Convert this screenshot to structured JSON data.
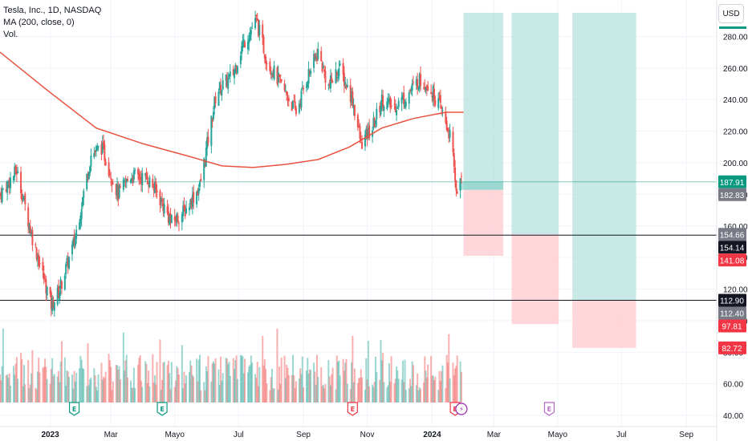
{
  "header": {
    "symbol_line": "Tesla, Inc., 1D, NASDAQ",
    "ma_line": "MA (200, close, 0)",
    "vol_line": "Vol.",
    "currency": "USD"
  },
  "colors": {
    "up": "#26a69a",
    "down": "#ef5350",
    "ma": "#e8523f",
    "profit_zone": "#b2dfdb",
    "loss_zone": "#ffcdd2",
    "grid": "#f0f3fa",
    "axis_text": "#131722"
  },
  "chart_data": {
    "type": "candlestick",
    "price_axis": {
      "ticks": [
        "40.00",
        "60.00",
        "80.00",
        "100.00",
        "120.00",
        "140.00",
        "160.00",
        "180.00",
        "200.00",
        "220.00",
        "240.00",
        "260.00",
        "280.00"
      ],
      "ylim": [
        38,
        298
      ]
    },
    "time_axis": {
      "labels": [
        "2023",
        "Mar",
        "Mayo",
        "Jul",
        "Sep",
        "Nov",
        "2024",
        "Mar",
        "Mayo",
        "Jul",
        "Sep"
      ],
      "bold": [
        "2023",
        "2024"
      ],
      "range": [
        "2022-11-15",
        "2024-09-30"
      ]
    },
    "price_path": [
      [
        "2022-11-15",
        180
      ],
      [
        "2022-12-01",
        195
      ],
      [
        "2022-12-15",
        155
      ],
      [
        "2023-01-03",
        110
      ],
      [
        "2023-01-10",
        118
      ],
      [
        "2023-01-25",
        150
      ],
      [
        "2023-02-10",
        205
      ],
      [
        "2023-02-20",
        210
      ],
      [
        "2023-03-08",
        180
      ],
      [
        "2023-03-20",
        192
      ],
      [
        "2023-04-05",
        190
      ],
      [
        "2023-04-15",
        180
      ],
      [
        "2023-04-28",
        162
      ],
      [
        "2023-05-10",
        169
      ],
      [
        "2023-05-25",
        185
      ],
      [
        "2023-06-10",
        245
      ],
      [
        "2023-06-25",
        255
      ],
      [
        "2023-07-05",
        275
      ],
      [
        "2023-07-18",
        290
      ],
      [
        "2023-07-28",
        265
      ],
      [
        "2023-08-10",
        250
      ],
      [
        "2023-08-25",
        232
      ],
      [
        "2023-09-05",
        255
      ],
      [
        "2023-09-15",
        270
      ],
      [
        "2023-09-25",
        248
      ],
      [
        "2023-10-05",
        260
      ],
      [
        "2023-10-18",
        240
      ],
      [
        "2023-10-26",
        212
      ],
      [
        "2023-11-06",
        222
      ],
      [
        "2023-11-15",
        240
      ],
      [
        "2023-11-25",
        235
      ],
      [
        "2023-12-08",
        242
      ],
      [
        "2023-12-20",
        252
      ],
      [
        "2023-12-29",
        250
      ],
      [
        "2024-01-10",
        235
      ],
      [
        "2024-01-20",
        215
      ],
      [
        "2024-01-25",
        183
      ],
      [
        "2024-01-30",
        187.91
      ]
    ],
    "ma_200": [
      [
        "2022-11-15",
        270
      ],
      [
        "2023-01-01",
        245
      ],
      [
        "2023-02-15",
        222
      ],
      [
        "2023-04-01",
        212
      ],
      [
        "2023-05-15",
        204
      ],
      [
        "2023-06-15",
        198
      ],
      [
        "2023-07-15",
        197
      ],
      [
        "2023-08-15",
        199
      ],
      [
        "2023-09-15",
        202
      ],
      [
        "2023-10-15",
        210
      ],
      [
        "2023-11-15",
        222
      ],
      [
        "2023-12-15",
        228
      ],
      [
        "2024-01-15",
        232
      ],
      [
        "2024-02-01",
        232
      ]
    ],
    "horizontal_lines": [
      154.14,
      112.9
    ],
    "last_price_line": 187.91,
    "positions": [
      {
        "x1": "2024-02-01",
        "x2": "2024-03-10",
        "entry": 182.83,
        "target": 295,
        "stop": 141.08
      },
      {
        "x1": "2024-03-18",
        "x2": "2024-05-02",
        "entry": 154.66,
        "target": 295,
        "stop": 97.81
      },
      {
        "x1": "2024-05-15",
        "x2": "2024-07-15",
        "entry": 112.9,
        "target": 295,
        "stop": 82.72
      }
    ],
    "price_labels": [
      {
        "text": "187.91",
        "value": 187.91,
        "bg": "#089981",
        "fg": "#ffffff"
      },
      {
        "text": "182.83",
        "value": 182.83,
        "bg": "#787b86",
        "fg": "#ffffff"
      },
      {
        "text": "154.66",
        "value": 154.66,
        "bg": "#787b86",
        "fg": "#ffffff"
      },
      {
        "text": "154.14",
        "value": 154.14,
        "bg": "#131722",
        "fg": "#ffffff"
      },
      {
        "text": "141.08",
        "value": 141.08,
        "bg": "#f23645",
        "fg": "#ffffff"
      },
      {
        "text": "112.90",
        "value": 112.9,
        "bg": "#131722",
        "fg": "#ffffff"
      },
      {
        "text": "112.40",
        "value": 112.4,
        "bg": "#787b86",
        "fg": "#ffffff"
      },
      {
        "text": "97.81",
        "value": 97.81,
        "bg": "#f23645",
        "fg": "#ffffff"
      },
      {
        "text": "82.72",
        "value": 82.72,
        "bg": "#f23645",
        "fg": "#ffffff"
      }
    ],
    "event_markers": [
      {
        "date": "2023-01-25",
        "kind": "earnings",
        "label": "E",
        "color": "#089981"
      },
      {
        "date": "2023-04-19",
        "kind": "earnings",
        "label": "E",
        "color": "#089981"
      },
      {
        "date": "2023-10-18",
        "kind": "earnings",
        "label": "E",
        "color": "#f23645"
      },
      {
        "date": "2024-01-24",
        "kind": "earnings",
        "label": "E",
        "color": "#f23645"
      },
      {
        "date": "2024-01-30",
        "kind": "split",
        "label": "⚡",
        "color": "#9c27b0"
      },
      {
        "date": "2024-04-23",
        "kind": "earnings",
        "label": "E",
        "color": "#ba68c8"
      }
    ],
    "volume": {
      "max_height_fraction": 0.18
    }
  }
}
